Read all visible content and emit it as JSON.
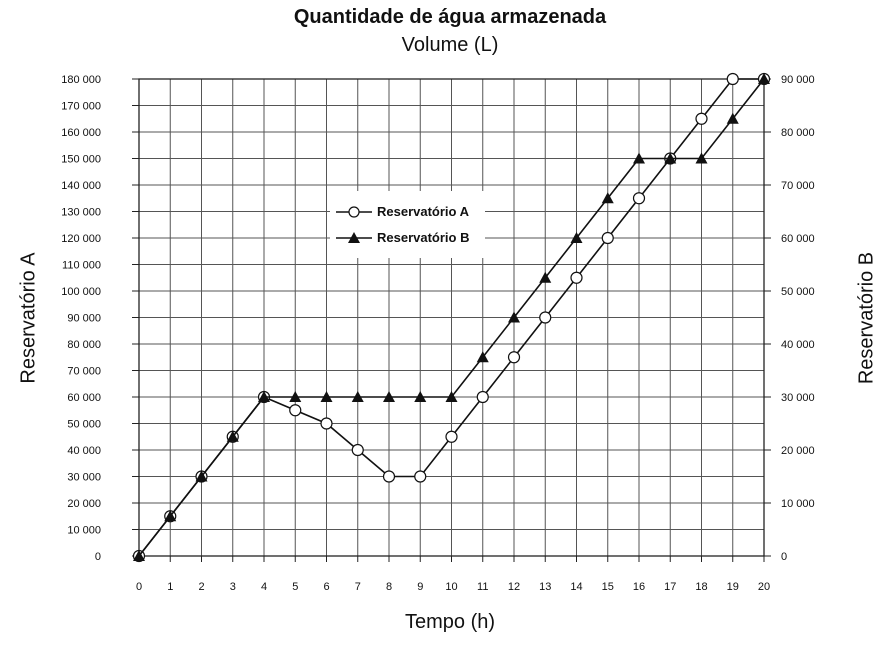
{
  "chart_data": {
    "type": "line",
    "title": "Quantidade de água armazenada",
    "subtitle": "Volume (L)",
    "xlabel": "Tempo (h)",
    "ylabel_left": "Reservatório A",
    "ylabel_right": "Reservatório B",
    "x": [
      0,
      1,
      2,
      3,
      4,
      5,
      6,
      7,
      8,
      9,
      10,
      11,
      12,
      13,
      14,
      15,
      16,
      17,
      18,
      19,
      20
    ],
    "xlim": [
      0,
      20
    ],
    "ylim_left": [
      0,
      180000
    ],
    "ylim_right": [
      0,
      90000
    ],
    "left_ticks": [
      0,
      10000,
      20000,
      30000,
      40000,
      50000,
      60000,
      70000,
      80000,
      90000,
      100000,
      110000,
      120000,
      130000,
      140000,
      150000,
      160000,
      170000,
      180000
    ],
    "left_tick_labels": [
      "0",
      "10 000",
      "20 000",
      "30 000",
      "40 000",
      "50 000",
      "60 000",
      "70 000",
      "80 000",
      "90 000",
      "100 000",
      "110 000",
      "120 000",
      "130 000",
      "140 000",
      "150 000",
      "160 000",
      "170 000",
      "180 000"
    ],
    "right_ticks": [
      0,
      10000,
      20000,
      30000,
      40000,
      50000,
      60000,
      70000,
      80000,
      90000
    ],
    "right_tick_labels": [
      "0",
      "10 000",
      "20 000",
      "30 000",
      "40 000",
      "50 000",
      "60 000",
      "70 000",
      "80 000",
      "90 000"
    ],
    "grid": true,
    "legend_position": "center-left",
    "series": [
      {
        "name": "Reservatório A",
        "axis": "left",
        "marker": "open-circle",
        "x": [
          0,
          1,
          2,
          3,
          4,
          5,
          6,
          7,
          8,
          9,
          10,
          11,
          12,
          13,
          14,
          15,
          16,
          17,
          18,
          19,
          20
        ],
        "values": [
          0,
          15000,
          30000,
          45000,
          60000,
          55000,
          50000,
          40000,
          30000,
          30000,
          45000,
          60000,
          75000,
          90000,
          105000,
          120000,
          135000,
          150000,
          165000,
          180000,
          180000
        ]
      },
      {
        "name": "Reservatório B",
        "axis": "right",
        "marker": "filled-triangle",
        "x": [
          0,
          1,
          2,
          3,
          4,
          5,
          6,
          7,
          8,
          9,
          10,
          11,
          12,
          13,
          14,
          15,
          16,
          17,
          18,
          19,
          20
        ],
        "values": [
          0,
          7500,
          15000,
          22500,
          30000,
          30000,
          30000,
          30000,
          30000,
          30000,
          30000,
          37500,
          45000,
          52500,
          60000,
          67500,
          75000,
          75000,
          75000,
          82500,
          90000
        ]
      }
    ]
  }
}
